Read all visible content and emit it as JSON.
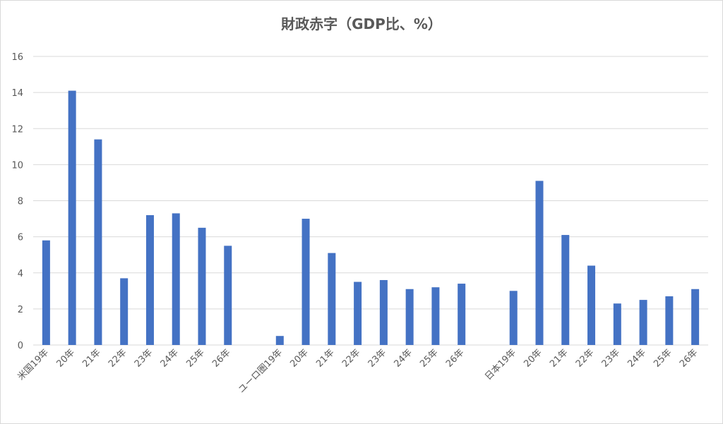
{
  "chart_data": {
    "type": "bar",
    "title": "財政赤字（GDP比、%）",
    "xlabel": "",
    "ylabel": "",
    "ylim": [
      0,
      16
    ],
    "yticks": [
      0,
      2,
      4,
      6,
      8,
      10,
      12,
      14,
      16
    ],
    "grid": true,
    "legend": "none",
    "bar_color": "#4472c4",
    "categories": [
      "米国19年",
      "20年",
      "21年",
      "22年",
      "23年",
      "24年",
      "25年",
      "26年",
      "",
      "ユーロ圏19年",
      "20年",
      "21年",
      "22年",
      "23年",
      "24年",
      "25年",
      "26年",
      "",
      "日本19年",
      "20年",
      "21年",
      "22年",
      "23年",
      "24年",
      "25年",
      "26年"
    ],
    "values": [
      5.8,
      14.1,
      11.4,
      3.7,
      7.2,
      7.3,
      6.5,
      5.5,
      null,
      0.5,
      7.0,
      5.1,
      3.5,
      3.6,
      3.1,
      3.2,
      3.4,
      null,
      3.0,
      9.1,
      6.1,
      4.4,
      2.3,
      2.5,
      2.7,
      3.1
    ]
  }
}
